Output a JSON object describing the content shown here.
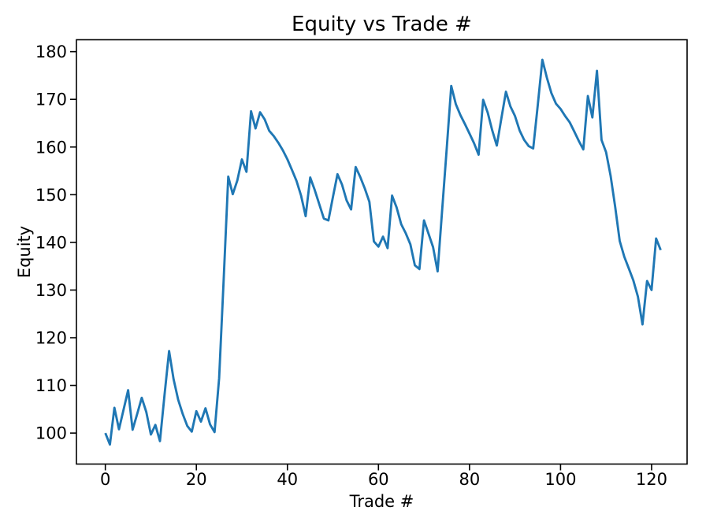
{
  "figure": {
    "title": "Equity vs Trade #",
    "xlabel": "Trade #",
    "ylabel": "Equity"
  },
  "chart_data": {
    "type": "line",
    "title": "Equity vs Trade #",
    "xlabel": "Trade #",
    "ylabel": "Equity",
    "x_mode": "index",
    "x_ticks": [
      0,
      20,
      40,
      60,
      80,
      100,
      120
    ],
    "y_ticks": [
      100,
      110,
      120,
      130,
      140,
      150,
      160,
      170,
      180
    ],
    "xlim": [
      -6.35,
      127.8
    ],
    "ylim": [
      93.5,
      182.5
    ],
    "grid": false,
    "legend": false,
    "line_color": "#1f77b4",
    "axes_color": "#000000",
    "background": "#ffffff",
    "values": [
      100.0,
      97.6,
      105.3,
      100.8,
      104.9,
      109.0,
      100.7,
      104.0,
      107.4,
      104.4,
      99.7,
      101.7,
      98.3,
      108.0,
      117.2,
      111.3,
      107.0,
      104.0,
      101.5,
      100.3,
      104.6,
      102.4,
      105.2,
      101.8,
      100.2,
      111.5,
      132.3,
      153.8,
      150.1,
      153.0,
      157.4,
      154.8,
      167.5,
      163.9,
      167.3,
      165.8,
      163.4,
      162.3,
      160.9,
      159.3,
      157.4,
      155.2,
      152.9,
      149.8,
      145.5,
      153.6,
      151.0,
      148.0,
      145.0,
      144.6,
      149.5,
      154.3,
      152.1,
      148.8,
      146.9,
      155.8,
      153.7,
      151.3,
      148.5,
      140.2,
      139.1,
      141.2,
      138.8,
      149.8,
      147.3,
      143.8,
      141.9,
      139.6,
      135.2,
      134.4,
      144.6,
      141.8,
      139.0,
      133.9,
      146.9,
      159.8,
      172.8,
      169.0,
      166.7,
      164.8,
      162.8,
      160.8,
      158.4,
      169.9,
      167.2,
      163.5,
      160.3,
      166.0,
      171.6,
      168.5,
      166.5,
      163.5,
      161.5,
      160.2,
      159.7,
      168.8,
      178.3,
      174.5,
      171.3,
      169.1,
      168.0,
      166.5,
      165.2,
      163.3,
      161.3,
      159.5,
      170.7,
      166.2,
      176.0,
      161.5,
      158.9,
      154.0,
      147.5,
      140.3,
      137.0,
      134.5,
      132.0,
      128.6,
      122.8,
      131.9,
      130.0,
      140.8,
      138.4
    ]
  }
}
